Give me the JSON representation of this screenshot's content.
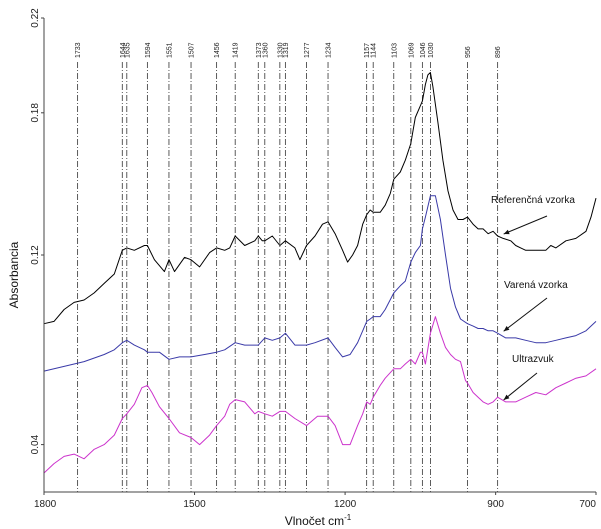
{
  "chart_data": {
    "type": "line",
    "xlabel": "Vlnočet cm",
    "xlabel_sup": "-1",
    "ylabel": "Absorbancia",
    "xlim": [
      1800,
      700
    ],
    "ylim": [
      0.02,
      0.22
    ],
    "x_ticks": [
      1800,
      1500,
      1200,
      900,
      700
    ],
    "y_ticks": [
      0.04,
      0.12,
      0.18,
      0.22
    ],
    "x_tick_labels": [
      "1800",
      "1500",
      "1200",
      "900",
      "700"
    ],
    "y_tick_labels": [
      "0.04",
      "0.12",
      "0.18",
      "0.22"
    ],
    "grid": false,
    "legend": "none",
    "peak_markers": [
      1733,
      1644,
      1635,
      1594,
      1551,
      1507,
      1456,
      1419,
      1373,
      1360,
      1330,
      1319,
      1277,
      1234,
      1157,
      1144,
      1103,
      1069,
      1046,
      1030,
      956,
      896
    ],
    "peak_labels": [
      "1733",
      "1644",
      "1635",
      "1594",
      "1551",
      "1507",
      "1456",
      "1419",
      "1373",
      "1360",
      "1330",
      "1319",
      "1277",
      "1234",
      "1157",
      "1144",
      "1103",
      "1069",
      "1046",
      "1030",
      "956",
      "896"
    ],
    "series": [
      {
        "name": "Referenčná vzorka",
        "color": "#000000",
        "x": [
          1800,
          1780,
          1760,
          1740,
          1720,
          1700,
          1680,
          1660,
          1644,
          1635,
          1620,
          1600,
          1594,
          1580,
          1560,
          1551,
          1540,
          1520,
          1507,
          1490,
          1470,
          1456,
          1440,
          1430,
          1419,
          1400,
          1380,
          1373,
          1365,
          1360,
          1345,
          1330,
          1319,
          1300,
          1290,
          1277,
          1260,
          1245,
          1234,
          1220,
          1205,
          1195,
          1185,
          1175,
          1165,
          1157,
          1150,
          1144,
          1130,
          1120,
          1110,
          1103,
          1090,
          1080,
          1069,
          1060,
          1050,
          1046,
          1040,
          1035,
          1030,
          1025,
          1015,
          1005,
          995,
          985,
          975,
          965,
          956,
          945,
          935,
          925,
          915,
          905,
          896,
          885,
          870,
          860,
          850,
          840,
          820,
          800,
          790,
          780,
          760,
          740,
          720,
          710,
          700
        ],
        "y": [
          0.091,
          0.092,
          0.097,
          0.1,
          0.101,
          0.104,
          0.108,
          0.112,
          0.122,
          0.123,
          0.122,
          0.124,
          0.124,
          0.118,
          0.113,
          0.118,
          0.113,
          0.119,
          0.118,
          0.115,
          0.121,
          0.123,
          0.122,
          0.123,
          0.128,
          0.124,
          0.126,
          0.128,
          0.126,
          0.126,
          0.128,
          0.124,
          0.126,
          0.123,
          0.118,
          0.124,
          0.128,
          0.133,
          0.134,
          0.129,
          0.122,
          0.117,
          0.12,
          0.124,
          0.133,
          0.137,
          0.139,
          0.138,
          0.138,
          0.141,
          0.146,
          0.152,
          0.155,
          0.16,
          0.167,
          0.178,
          0.183,
          0.185,
          0.192,
          0.196,
          0.197,
          0.191,
          0.176,
          0.16,
          0.147,
          0.139,
          0.135,
          0.135,
          0.136,
          0.133,
          0.131,
          0.131,
          0.129,
          0.13,
          0.128,
          0.127,
          0.126,
          0.124,
          0.123,
          0.122,
          0.122,
          0.122,
          0.124,
          0.123,
          0.126,
          0.127,
          0.13,
          0.136,
          0.144
        ]
      },
      {
        "name": "Varená vzorka",
        "color": "#3a3aa8",
        "x": [
          1800,
          1760,
          1720,
          1680,
          1660,
          1644,
          1635,
          1620,
          1600,
          1594,
          1570,
          1551,
          1530,
          1507,
          1480,
          1456,
          1440,
          1419,
          1400,
          1373,
          1360,
          1345,
          1330,
          1319,
          1300,
          1277,
          1260,
          1234,
          1220,
          1205,
          1190,
          1175,
          1165,
          1157,
          1150,
          1144,
          1130,
          1120,
          1103,
          1090,
          1080,
          1069,
          1060,
          1050,
          1046,
          1040,
          1030,
          1020,
          1010,
          1000,
          990,
          980,
          970,
          956,
          945,
          935,
          925,
          915,
          905,
          896,
          880,
          860,
          840,
          820,
          800,
          780,
          760,
          740,
          720,
          700
        ],
        "y": [
          0.071,
          0.073,
          0.075,
          0.078,
          0.08,
          0.083,
          0.084,
          0.082,
          0.08,
          0.079,
          0.079,
          0.076,
          0.077,
          0.077,
          0.078,
          0.079,
          0.08,
          0.083,
          0.082,
          0.082,
          0.085,
          0.084,
          0.085,
          0.087,
          0.082,
          0.082,
          0.083,
          0.085,
          0.081,
          0.077,
          0.078,
          0.083,
          0.088,
          0.092,
          0.093,
          0.094,
          0.094,
          0.097,
          0.104,
          0.107,
          0.109,
          0.117,
          0.121,
          0.124,
          0.131,
          0.136,
          0.145,
          0.145,
          0.135,
          0.12,
          0.106,
          0.098,
          0.093,
          0.091,
          0.09,
          0.089,
          0.089,
          0.088,
          0.088,
          0.087,
          0.085,
          0.085,
          0.084,
          0.083,
          0.083,
          0.084,
          0.085,
          0.086,
          0.088,
          0.092
        ]
      },
      {
        "name": "Ultrazvuk",
        "color": "#cc33cc",
        "x": [
          1800,
          1780,
          1760,
          1740,
          1720,
          1700,
          1680,
          1660,
          1644,
          1635,
          1620,
          1605,
          1594,
          1585,
          1570,
          1551,
          1530,
          1507,
          1490,
          1470,
          1456,
          1440,
          1430,
          1419,
          1400,
          1380,
          1373,
          1360,
          1345,
          1330,
          1319,
          1300,
          1277,
          1255,
          1234,
          1220,
          1205,
          1190,
          1175,
          1165,
          1157,
          1150,
          1144,
          1130,
          1120,
          1103,
          1090,
          1080,
          1069,
          1060,
          1050,
          1046,
          1040,
          1030,
          1020,
          1010,
          1000,
          990,
          980,
          970,
          960,
          956,
          945,
          935,
          925,
          915,
          905,
          896,
          880,
          860,
          840,
          820,
          800,
          780,
          760,
          740,
          720,
          700
        ],
        "y": [
          0.028,
          0.032,
          0.035,
          0.036,
          0.034,
          0.038,
          0.04,
          0.044,
          0.051,
          0.053,
          0.057,
          0.064,
          0.065,
          0.062,
          0.056,
          0.051,
          0.045,
          0.043,
          0.04,
          0.044,
          0.048,
          0.052,
          0.057,
          0.059,
          0.058,
          0.053,
          0.054,
          0.053,
          0.052,
          0.054,
          0.054,
          0.051,
          0.048,
          0.052,
          0.052,
          0.048,
          0.04,
          0.04,
          0.048,
          0.053,
          0.058,
          0.057,
          0.06,
          0.065,
          0.068,
          0.072,
          0.072,
          0.074,
          0.076,
          0.074,
          0.079,
          0.079,
          0.074,
          0.087,
          0.094,
          0.087,
          0.081,
          0.078,
          0.076,
          0.075,
          0.067,
          0.066,
          0.062,
          0.06,
          0.058,
          0.057,
          0.058,
          0.06,
          0.058,
          0.058,
          0.06,
          0.062,
          0.061,
          0.064,
          0.066,
          0.068,
          0.069,
          0.072
        ]
      }
    ],
    "annotations": [
      {
        "text": "Referenčná vzorka",
        "x": 896,
        "y": 0.128
      },
      {
        "text": "Varená vzorka",
        "x": 896,
        "y": 0.087
      },
      {
        "text": "Ultrazvuk",
        "x": 896,
        "y": 0.058
      }
    ]
  }
}
